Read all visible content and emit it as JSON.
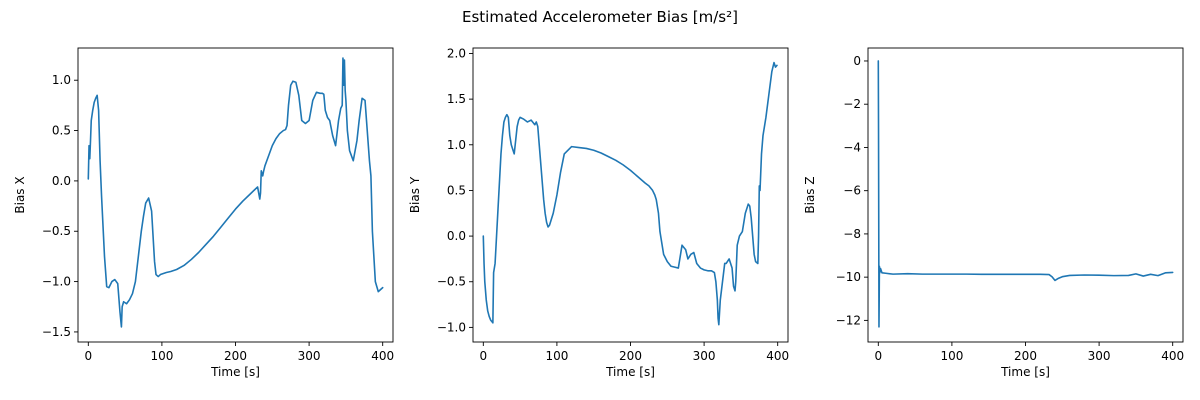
{
  "figure": {
    "suptitle": "Estimated Accelerometer Bias [m/s²]"
  },
  "colors": {
    "series": "#1f77b4",
    "axes": "#000000",
    "background": "#ffffff"
  },
  "chart_data": [
    {
      "type": "line",
      "xlabel": "Time [s]",
      "ylabel": "Bias X",
      "xlim": [
        -14,
        414
      ],
      "ylim": [
        -1.6,
        1.32
      ],
      "xticks": [
        0,
        100,
        200,
        300,
        400
      ],
      "xtick_labels": [
        "0",
        "100",
        "200",
        "300",
        "400"
      ],
      "yticks": [
        -1.5,
        -1.0,
        -0.5,
        0.0,
        0.5,
        1.0
      ],
      "ytick_labels": [
        "−1.5",
        "−1.0",
        "−0.5",
        "0.0",
        "0.5",
        "1.0"
      ],
      "series": [
        {
          "name": "Bias X",
          "x": [
            0,
            1,
            2,
            3,
            4,
            6,
            8,
            10,
            12,
            14,
            16,
            18,
            20,
            22,
            25,
            28,
            32,
            36,
            40,
            43,
            45,
            46,
            48,
            52,
            56,
            60,
            64,
            68,
            72,
            75,
            78,
            82,
            86,
            88,
            90,
            92,
            95,
            98,
            102,
            106,
            112,
            120,
            130,
            140,
            150,
            160,
            170,
            180,
            190,
            200,
            210,
            220,
            230,
            233,
            234,
            235,
            237,
            238,
            240,
            245,
            250,
            255,
            260,
            265,
            268,
            270,
            272,
            275,
            278,
            282,
            286,
            290,
            295,
            300,
            305,
            310,
            315,
            318,
            320,
            322,
            325,
            328,
            332,
            336,
            340,
            343,
            345,
            346,
            347,
            348,
            349,
            350,
            352,
            355,
            360,
            365,
            368,
            372,
            376,
            380,
            382,
            384,
            386,
            390,
            394,
            397,
            400
          ],
          "y": [
            0.02,
            0.35,
            0.22,
            0.4,
            0.6,
            0.7,
            0.78,
            0.82,
            0.85,
            0.7,
            0.2,
            -0.15,
            -0.45,
            -0.75,
            -1.05,
            -1.06,
            -1.0,
            -0.98,
            -1.02,
            -1.3,
            -1.45,
            -1.25,
            -1.2,
            -1.22,
            -1.18,
            -1.12,
            -1.0,
            -0.75,
            -0.5,
            -0.35,
            -0.22,
            -0.17,
            -0.3,
            -0.55,
            -0.8,
            -0.93,
            -0.95,
            -0.93,
            -0.92,
            -0.91,
            -0.9,
            -0.88,
            -0.84,
            -0.78,
            -0.71,
            -0.63,
            -0.55,
            -0.46,
            -0.37,
            -0.28,
            -0.2,
            -0.13,
            -0.06,
            -0.18,
            -0.12,
            0.1,
            0.05,
            0.09,
            0.15,
            0.25,
            0.35,
            0.42,
            0.47,
            0.5,
            0.51,
            0.55,
            0.75,
            0.95,
            0.99,
            0.98,
            0.85,
            0.6,
            0.57,
            0.6,
            0.8,
            0.88,
            0.87,
            0.87,
            0.86,
            0.7,
            0.63,
            0.6,
            0.45,
            0.35,
            0.6,
            0.72,
            0.75,
            1.22,
            0.95,
            1.2,
            0.9,
            0.8,
            0.5,
            0.3,
            0.2,
            0.4,
            0.6,
            0.82,
            0.8,
            0.4,
            0.2,
            0.05,
            -0.5,
            -1.0,
            -1.1,
            -1.08,
            -1.06
          ]
        }
      ]
    },
    {
      "type": "line",
      "xlabel": "Time [s]",
      "ylabel": "Bias Y",
      "xlim": [
        -14,
        414
      ],
      "ylim": [
        -1.16,
        2.06
      ],
      "xticks": [
        0,
        100,
        200,
        300,
        400
      ],
      "xtick_labels": [
        "0",
        "100",
        "200",
        "300",
        "400"
      ],
      "yticks": [
        -1.0,
        -0.5,
        0.0,
        0.5,
        1.0,
        1.5,
        2.0
      ],
      "ytick_labels": [
        "−1.0",
        "−0.5",
        "0.0",
        "0.5",
        "1.0",
        "1.5",
        "2.0"
      ],
      "series": [
        {
          "name": "Bias Y",
          "x": [
            0,
            1,
            2,
            4,
            6,
            8,
            10,
            12,
            13,
            14,
            16,
            18,
            20,
            22,
            24,
            26,
            28,
            30,
            32,
            34,
            36,
            38,
            40,
            42,
            44,
            46,
            48,
            50,
            55,
            60,
            65,
            70,
            72,
            74,
            76,
            78,
            80,
            82,
            84,
            86,
            88,
            90,
            95,
            100,
            105,
            110,
            120,
            130,
            140,
            150,
            160,
            170,
            180,
            190,
            200,
            210,
            220,
            225,
            230,
            233,
            235,
            238,
            240,
            243,
            245,
            250,
            255,
            260,
            265,
            268,
            270,
            275,
            278,
            282,
            286,
            290,
            295,
            300,
            305,
            310,
            314,
            316,
            318,
            319,
            320,
            322,
            325,
            328,
            330,
            334,
            338,
            340,
            342,
            343,
            345,
            348,
            352,
            356,
            360,
            362,
            364,
            366,
            368,
            370,
            373,
            374,
            375,
            376,
            378,
            380,
            384,
            388,
            392,
            395,
            397,
            399
          ],
          "y": [
            0.0,
            -0.3,
            -0.5,
            -0.7,
            -0.82,
            -0.88,
            -0.92,
            -0.94,
            -0.95,
            -0.4,
            -0.3,
            0.0,
            0.3,
            0.6,
            0.9,
            1.1,
            1.25,
            1.3,
            1.33,
            1.3,
            1.1,
            1.0,
            0.95,
            0.9,
            1.05,
            1.2,
            1.27,
            1.3,
            1.28,
            1.25,
            1.27,
            1.22,
            1.25,
            1.2,
            1.0,
            0.8,
            0.6,
            0.4,
            0.25,
            0.15,
            0.1,
            0.12,
            0.25,
            0.45,
            0.7,
            0.9,
            0.98,
            0.97,
            0.96,
            0.94,
            0.91,
            0.87,
            0.83,
            0.78,
            0.72,
            0.65,
            0.58,
            0.55,
            0.5,
            0.45,
            0.4,
            0.25,
            0.05,
            -0.1,
            -0.2,
            -0.28,
            -0.33,
            -0.34,
            -0.35,
            -0.2,
            -0.1,
            -0.15,
            -0.25,
            -0.2,
            -0.18,
            -0.3,
            -0.35,
            -0.37,
            -0.38,
            -0.38,
            -0.4,
            -0.5,
            -0.7,
            -0.9,
            -0.97,
            -0.7,
            -0.5,
            -0.3,
            -0.3,
            -0.25,
            -0.35,
            -0.55,
            -0.6,
            -0.5,
            -0.1,
            0.0,
            0.05,
            0.25,
            0.35,
            0.33,
            0.2,
            0.0,
            -0.2,
            -0.28,
            -0.3,
            0.0,
            0.55,
            0.5,
            0.9,
            1.1,
            1.3,
            1.55,
            1.8,
            1.9,
            1.85,
            1.87
          ]
        }
      ]
    },
    {
      "type": "line",
      "xlabel": "Time [s]",
      "ylabel": "Bias Z",
      "xlim": [
        -14,
        414
      ],
      "ylim": [
        -13.0,
        0.6
      ],
      "xticks": [
        0,
        100,
        200,
        300,
        400
      ],
      "xtick_labels": [
        "0",
        "100",
        "200",
        "300",
        "400"
      ],
      "yticks": [
        -12,
        -10,
        -8,
        -6,
        -4,
        -2,
        0
      ],
      "ytick_labels": [
        "−12",
        "−10",
        "−8",
        "−6",
        "−4",
        "−2",
        "0"
      ],
      "series": [
        {
          "name": "Bias Z",
          "x": [
            0,
            0.3,
            0.6,
            0.9,
            1.2,
            1.5,
            2,
            3,
            5,
            10,
            20,
            40,
            60,
            80,
            100,
            120,
            140,
            160,
            180,
            200,
            220,
            232,
            236,
            240,
            245,
            250,
            260,
            280,
            300,
            320,
            340,
            350,
            360,
            370,
            380,
            390,
            400
          ],
          "y": [
            0.0,
            -3.0,
            -7.5,
            -12.3,
            -11.0,
            -9.5,
            -9.8,
            -9.6,
            -9.8,
            -9.82,
            -9.86,
            -9.84,
            -9.86,
            -9.86,
            -9.86,
            -9.86,
            -9.87,
            -9.87,
            -9.87,
            -9.87,
            -9.87,
            -9.88,
            -9.98,
            -10.15,
            -10.05,
            -9.98,
            -9.92,
            -9.9,
            -9.91,
            -9.93,
            -9.92,
            -9.85,
            -9.95,
            -9.87,
            -9.93,
            -9.8,
            -9.78
          ]
        }
      ]
    }
  ]
}
